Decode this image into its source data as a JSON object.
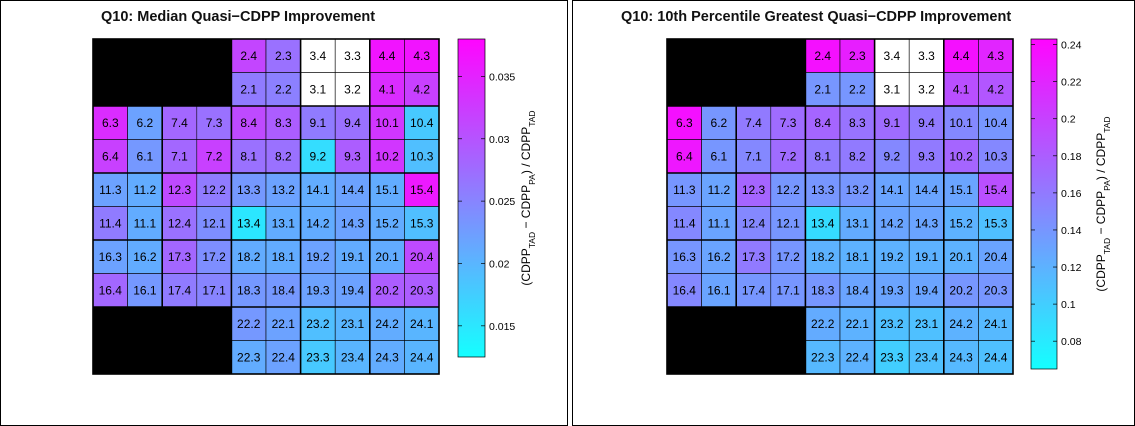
{
  "chart_data": [
    {
      "type": "heatmap",
      "title": "Q10: Median Quasi−CDPP Improvement",
      "colorbar_label": {
        "p1": "(CDPP",
        "s1": "TAD",
        "p2": " − CDPP",
        "s2": "PA",
        "p3": ") / CDPP",
        "s3": "TAD"
      },
      "colorbar_ticks": [
        "0.015",
        "0.02",
        "0.025",
        "0.03",
        "0.035"
      ],
      "colorbar_tick_values": [
        0.015,
        0.02,
        0.025,
        0.03,
        0.035
      ],
      "colorbar_range": [
        0.0125,
        0.038
      ],
      "cells": [
        [
          null,
          null,
          null,
          null,
          {
            "l": "2.4",
            "v": 0.0315
          },
          {
            "l": "2.3",
            "v": 0.027
          },
          {
            "l": "3.4",
            "v": null
          },
          {
            "l": "3.3",
            "v": null
          },
          {
            "l": "4.4",
            "v": 0.0365
          },
          {
            "l": "4.3",
            "v": 0.0365
          },
          null,
          null,
          null,
          null
        ],
        [
          null,
          null,
          null,
          null,
          {
            "l": "2.1",
            "v": 0.026
          },
          {
            "l": "2.2",
            "v": 0.0255
          },
          {
            "l": "3.1",
            "v": null
          },
          {
            "l": "3.2",
            "v": null
          },
          {
            "l": "4.1",
            "v": 0.034
          },
          {
            "l": "4.2",
            "v": 0.032
          },
          null,
          null,
          null,
          null
        ],
        [
          {
            "l": "6.3",
            "v": 0.034
          },
          {
            "l": "6.2",
            "v": 0.022
          },
          {
            "l": "7.4",
            "v": 0.028
          },
          {
            "l": "7.3",
            "v": 0.027
          },
          {
            "l": "8.4",
            "v": 0.031
          },
          {
            "l": "8.3",
            "v": 0.029
          },
          {
            "l": "9.1",
            "v": 0.026
          },
          {
            "l": "9.4",
            "v": 0.027
          },
          {
            "l": "10.1",
            "v": 0.033
          },
          {
            "l": "10.4",
            "v": 0.018
          }
        ],
        [
          {
            "l": "6.4",
            "v": 0.032
          },
          {
            "l": "6.1",
            "v": 0.023
          },
          {
            "l": "7.1",
            "v": 0.028
          },
          {
            "l": "7.2",
            "v": 0.032
          },
          {
            "l": "8.1",
            "v": 0.027
          },
          {
            "l": "8.2",
            "v": 0.027
          },
          {
            "l": "9.2",
            "v": 0.016
          },
          {
            "l": "9.3",
            "v": 0.029
          },
          {
            "l": "10.2",
            "v": 0.033
          },
          {
            "l": "10.3",
            "v": 0.019
          }
        ],
        [
          {
            "l": "11.3",
            "v": 0.022
          },
          {
            "l": "11.2",
            "v": 0.021
          },
          {
            "l": "12.3",
            "v": 0.031
          },
          {
            "l": "12.2",
            "v": 0.026
          },
          {
            "l": "13.3",
            "v": 0.023
          },
          {
            "l": "13.2",
            "v": 0.022
          },
          {
            "l": "14.1",
            "v": 0.021
          },
          {
            "l": "14.4",
            "v": 0.022
          },
          {
            "l": "15.1",
            "v": 0.021
          },
          {
            "l": "15.4",
            "v": 0.036
          }
        ],
        [
          {
            "l": "11.4",
            "v": 0.026
          },
          {
            "l": "11.1",
            "v": 0.021
          },
          {
            "l": "12.4",
            "v": 0.027
          },
          {
            "l": "12.1",
            "v": 0.024
          },
          {
            "l": "13.4",
            "v": 0.015
          },
          {
            "l": "13.1",
            "v": 0.021
          },
          {
            "l": "14.2",
            "v": 0.021
          },
          {
            "l": "14.3",
            "v": 0.022
          },
          {
            "l": "15.2",
            "v": 0.021
          },
          {
            "l": "15.3",
            "v": 0.019
          }
        ],
        [
          {
            "l": "16.3",
            "v": 0.022
          },
          {
            "l": "16.2",
            "v": 0.021
          },
          {
            "l": "17.3",
            "v": 0.028
          },
          {
            "l": "17.2",
            "v": 0.024
          },
          {
            "l": "18.2",
            "v": 0.021
          },
          {
            "l": "18.1",
            "v": 0.021
          },
          {
            "l": "19.2",
            "v": 0.022
          },
          {
            "l": "19.1",
            "v": 0.021
          },
          {
            "l": "20.1",
            "v": 0.021
          },
          {
            "l": "20.4",
            "v": 0.031
          }
        ],
        [
          {
            "l": "16.4",
            "v": 0.028
          },
          {
            "l": "16.1",
            "v": 0.023
          },
          {
            "l": "17.4",
            "v": 0.026
          },
          {
            "l": "17.1",
            "v": 0.025
          },
          {
            "l": "18.3",
            "v": 0.023
          },
          {
            "l": "18.4",
            "v": 0.023
          },
          {
            "l": "19.3",
            "v": 0.022
          },
          {
            "l": "19.4",
            "v": 0.022
          },
          {
            "l": "20.2",
            "v": 0.029
          },
          {
            "l": "20.3",
            "v": 0.029
          }
        ],
        [
          null,
          null,
          null,
          null,
          {
            "l": "22.2",
            "v": 0.023
          },
          {
            "l": "22.1",
            "v": 0.022
          },
          {
            "l": "23.2",
            "v": 0.019
          },
          {
            "l": "23.1",
            "v": 0.02
          },
          {
            "l": "24.2",
            "v": 0.021
          },
          {
            "l": "24.1",
            "v": 0.02
          },
          null,
          null,
          null,
          null
        ],
        [
          null,
          null,
          null,
          null,
          {
            "l": "22.3",
            "v": 0.021
          },
          {
            "l": "22.4",
            "v": 0.022
          },
          {
            "l": "23.3",
            "v": 0.018
          },
          {
            "l": "23.4",
            "v": 0.02
          },
          {
            "l": "24.3",
            "v": 0.021
          },
          {
            "l": "24.4",
            "v": 0.02
          },
          null,
          null,
          null,
          null
        ]
      ]
    },
    {
      "type": "heatmap",
      "title": "Q10: 10th Percentile Greatest Quasi−CDPP Improvement",
      "colorbar_label": {
        "p1": "(CDPP",
        "s1": "TAD",
        "p2": " − CDPP",
        "s2": "PA",
        "p3": ") / CDPP",
        "s3": "TAD"
      },
      "colorbar_ticks": [
        "0.08",
        "0.1",
        "0.12",
        "0.14",
        "0.16",
        "0.18",
        "0.2",
        "0.22",
        "0.24"
      ],
      "colorbar_tick_values": [
        0.08,
        0.1,
        0.12,
        0.14,
        0.16,
        0.18,
        0.2,
        0.22,
        0.24
      ],
      "colorbar_range": [
        0.065,
        0.243
      ],
      "cells": [
        [
          null,
          null,
          null,
          null,
          {
            "l": "2.4",
            "v": 0.235
          },
          {
            "l": "2.3",
            "v": 0.225
          },
          {
            "l": "3.4",
            "v": null
          },
          {
            "l": "3.3",
            "v": null
          },
          {
            "l": "4.4",
            "v": 0.235
          },
          {
            "l": "4.3",
            "v": 0.22
          },
          null,
          null,
          null,
          null
        ],
        [
          null,
          null,
          null,
          null,
          {
            "l": "2.1",
            "v": 0.14
          },
          {
            "l": "2.2",
            "v": 0.14
          },
          {
            "l": "3.1",
            "v": null
          },
          {
            "l": "3.2",
            "v": null
          },
          {
            "l": "4.1",
            "v": 0.19
          },
          {
            "l": "4.2",
            "v": 0.185
          },
          null,
          null,
          null,
          null
        ],
        [
          {
            "l": "6.3",
            "v": 0.235
          },
          {
            "l": "6.2",
            "v": 0.14
          },
          {
            "l": "7.4",
            "v": 0.16
          },
          {
            "l": "7.3",
            "v": 0.17
          },
          {
            "l": "8.4",
            "v": 0.175
          },
          {
            "l": "8.3",
            "v": 0.165
          },
          {
            "l": "9.1",
            "v": 0.17
          },
          {
            "l": "9.4",
            "v": 0.16
          },
          {
            "l": "10.1",
            "v": 0.15
          },
          {
            "l": "10.4",
            "v": 0.14
          }
        ],
        [
          {
            "l": "6.4",
            "v": 0.23
          },
          {
            "l": "6.1",
            "v": 0.14
          },
          {
            "l": "7.1",
            "v": 0.15
          },
          {
            "l": "7.2",
            "v": 0.17
          },
          {
            "l": "8.1",
            "v": 0.16
          },
          {
            "l": "8.2",
            "v": 0.16
          },
          {
            "l": "9.2",
            "v": 0.15
          },
          {
            "l": "9.3",
            "v": 0.16
          },
          {
            "l": "10.2",
            "v": 0.175
          },
          {
            "l": "10.3",
            "v": 0.15
          }
        ],
        [
          {
            "l": "11.3",
            "v": 0.14
          },
          {
            "l": "11.2",
            "v": 0.13
          },
          {
            "l": "12.3",
            "v": 0.175
          },
          {
            "l": "12.2",
            "v": 0.14
          },
          {
            "l": "13.3",
            "v": 0.14
          },
          {
            "l": "13.2",
            "v": 0.14
          },
          {
            "l": "14.1",
            "v": 0.13
          },
          {
            "l": "14.4",
            "v": 0.13
          },
          {
            "l": "15.1",
            "v": 0.13
          },
          {
            "l": "15.4",
            "v": 0.19
          }
        ],
        [
          {
            "l": "11.4",
            "v": 0.15
          },
          {
            "l": "11.1",
            "v": 0.13
          },
          {
            "l": "12.4",
            "v": 0.15
          },
          {
            "l": "12.1",
            "v": 0.14
          },
          {
            "l": "13.4",
            "v": 0.09
          },
          {
            "l": "13.1",
            "v": 0.125
          },
          {
            "l": "14.2",
            "v": 0.13
          },
          {
            "l": "14.3",
            "v": 0.13
          },
          {
            "l": "15.2",
            "v": 0.12
          },
          {
            "l": "15.3",
            "v": 0.11
          }
        ],
        [
          {
            "l": "16.3",
            "v": 0.14
          },
          {
            "l": "16.2",
            "v": 0.13
          },
          {
            "l": "17.3",
            "v": 0.16
          },
          {
            "l": "17.2",
            "v": 0.14
          },
          {
            "l": "18.2",
            "v": 0.12
          },
          {
            "l": "18.1",
            "v": 0.12
          },
          {
            "l": "19.2",
            "v": 0.12
          },
          {
            "l": "19.1",
            "v": 0.12
          },
          {
            "l": "20.1",
            "v": 0.12
          },
          {
            "l": "20.4",
            "v": 0.13
          }
        ],
        [
          {
            "l": "16.4",
            "v": 0.15
          },
          {
            "l": "16.1",
            "v": 0.13
          },
          {
            "l": "17.4",
            "v": 0.14
          },
          {
            "l": "17.1",
            "v": 0.14
          },
          {
            "l": "18.3",
            "v": 0.14
          },
          {
            "l": "18.4",
            "v": 0.13
          },
          {
            "l": "19.3",
            "v": 0.13
          },
          {
            "l": "19.4",
            "v": 0.13
          },
          {
            "l": "20.2",
            "v": 0.14
          },
          {
            "l": "20.3",
            "v": 0.14
          }
        ],
        [
          null,
          null,
          null,
          null,
          {
            "l": "22.2",
            "v": 0.125
          },
          {
            "l": "22.1",
            "v": 0.12
          },
          {
            "l": "23.2",
            "v": 0.11
          },
          {
            "l": "23.1",
            "v": 0.11
          },
          {
            "l": "24.2",
            "v": 0.12
          },
          {
            "l": "24.1",
            "v": 0.115
          },
          null,
          null,
          null,
          null
        ],
        [
          null,
          null,
          null,
          null,
          {
            "l": "22.3",
            "v": 0.115
          },
          {
            "l": "22.4",
            "v": 0.12
          },
          {
            "l": "23.3",
            "v": 0.1
          },
          {
            "l": "23.4",
            "v": 0.11
          },
          {
            "l": "24.3",
            "v": 0.115
          },
          {
            "l": "24.4",
            "v": 0.11
          },
          null,
          null,
          null,
          null
        ]
      ]
    }
  ]
}
